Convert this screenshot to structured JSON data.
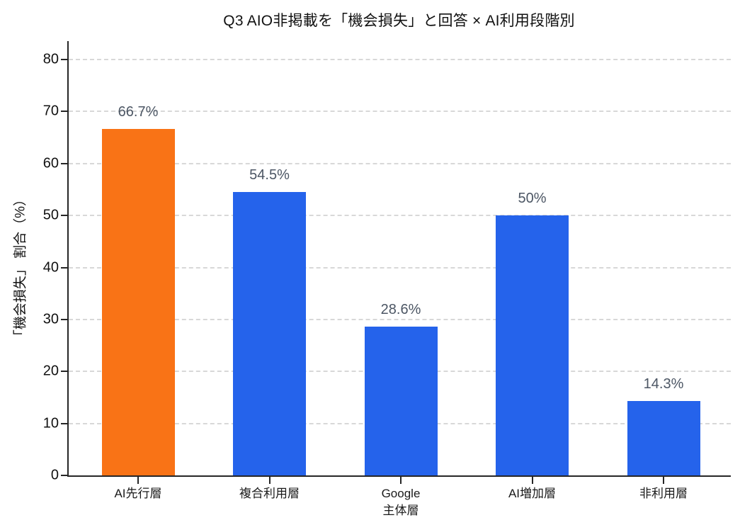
{
  "chart_data": {
    "type": "bar",
    "title": "Q3 AIO非掲載を「機会損失」と回答 × AI利用段階別",
    "ylabel": "「機会損失」 割合（%）",
    "xlabel": "",
    "categories": [
      "AI先行層",
      "複合利用層",
      "Google\n主体層",
      "AI増加層",
      "非利用層"
    ],
    "values": [
      66.7,
      54.5,
      28.6,
      50,
      14.3
    ],
    "value_labels": [
      "66.7%",
      "54.5%",
      "28.6%",
      "50%",
      "14.3%"
    ],
    "bar_colors": [
      "#F97316",
      "#2563EB",
      "#2563EB",
      "#2563EB",
      "#2563EB"
    ],
    "ylim": [
      0,
      80
    ],
    "yticks": [
      0,
      10,
      20,
      30,
      40,
      50,
      60,
      70,
      80
    ],
    "grid": "horizontal dashed",
    "legend": "none",
    "colors": {
      "highlight_bar": "#F97316",
      "default_bar": "#2563EB",
      "gridline": "#D8D8D8",
      "axis": "#262626",
      "value_label": "#4C5664",
      "tick_label": "#111111",
      "title": "#111111",
      "background": "#FFFFFF"
    }
  }
}
